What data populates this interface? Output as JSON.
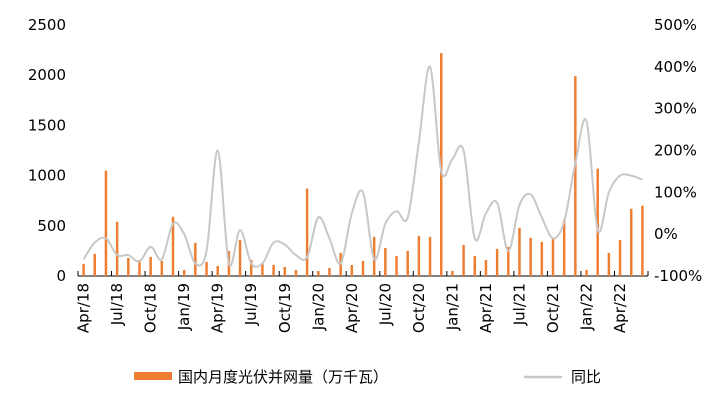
{
  "chart_data": {
    "type": "bar+line",
    "title": "",
    "xlabel": "",
    "ylabel": "",
    "left_axis": {
      "min": 0,
      "max": 2500,
      "ticks": [
        "0",
        "500",
        "1000",
        "1500",
        "2000",
        "2500"
      ]
    },
    "right_axis": {
      "min": -100,
      "max": 500,
      "ticks": [
        "-100%",
        "0%",
        "100%",
        "200%",
        "300%",
        "400%",
        "500%"
      ]
    },
    "x_tick_labels": [
      "Apr/18",
      "Jul/18",
      "Oct/18",
      "Jan/19",
      "Apr/19",
      "Jul/19",
      "Oct/19",
      "Jan/20",
      "Apr/20",
      "Jul/20",
      "Oct/20",
      "Jan/21",
      "Apr/21",
      "Jul/21",
      "Oct/21",
      "Jan/22",
      "Apr/22"
    ],
    "months": [
      "2018-04",
      "2018-05",
      "2018-06",
      "2018-07",
      "2018-08",
      "2018-09",
      "2018-10",
      "2018-11",
      "2018-12",
      "2019-01",
      "2019-02",
      "2019-03",
      "2019-04",
      "2019-05",
      "2019-06",
      "2019-07",
      "2019-08",
      "2019-09",
      "2019-10",
      "2019-11",
      "2019-12",
      "2020-01",
      "2020-02",
      "2020-03",
      "2020-04",
      "2020-05",
      "2020-06",
      "2020-07",
      "2020-08",
      "2020-09",
      "2020-10",
      "2020-11",
      "2020-12",
      "2021-01",
      "2021-02",
      "2021-03",
      "2021-04",
      "2021-05",
      "2021-06",
      "2021-07",
      "2021-08",
      "2021-09",
      "2021-10",
      "2021-11",
      "2021-12",
      "2022-01",
      "2022-02",
      "2022-03",
      "2022-04",
      "2022-05",
      "2022-06"
    ],
    "grid": false,
    "legend_position": "bottom",
    "series": [
      {
        "name": "国内月度光伏并网量（万千瓦）",
        "type": "bar",
        "axis": "left",
        "color": "#ED7D31",
        "values": [
          120,
          220,
          1050,
          540,
          180,
          160,
          190,
          150,
          590,
          60,
          330,
          140,
          100,
          250,
          360,
          160,
          130,
          110,
          90,
          60,
          870,
          50,
          80,
          230,
          110,
          150,
          390,
          280,
          200,
          250,
          400,
          390,
          2220,
          50,
          310,
          200,
          160,
          270,
          290,
          480,
          380,
          340,
          380,
          560,
          1990,
          60,
          1070,
          230,
          360,
          670,
          700
        ]
      },
      {
        "name": "同比",
        "type": "line",
        "axis": "right",
        "color": "#C8C8C8",
        "values": [
          -60,
          -20,
          -10,
          -50,
          -50,
          -65,
          -30,
          -60,
          25,
          0,
          -70,
          -40,
          200,
          -70,
          10,
          -70,
          -70,
          -20,
          -25,
          -50,
          -55,
          40,
          -10,
          -70,
          50,
          100,
          -60,
          25,
          55,
          40,
          220,
          400,
          150,
          180,
          200,
          -10,
          50,
          75,
          -40,
          70,
          95,
          40,
          -10,
          30,
          170,
          270,
          10,
          100,
          140,
          140,
          130
        ]
      }
    ]
  }
}
